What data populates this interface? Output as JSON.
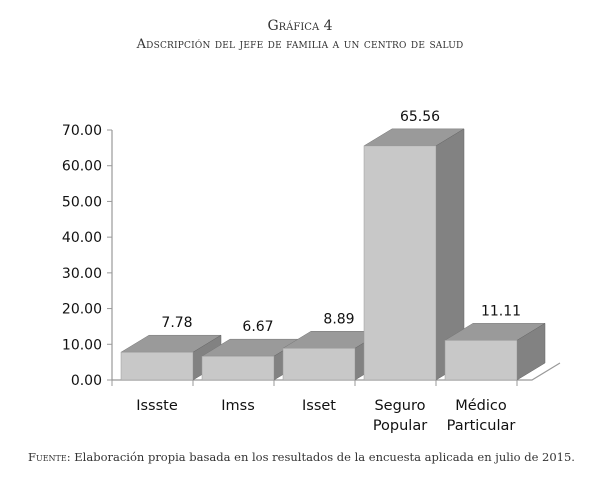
{
  "title": "Gráfica 4",
  "subtitle": "Adscripción del jefe de familia a un centro de salud",
  "source_label": "Fuente:",
  "source_text": " Elaboración propia basada en los resultados de la encuesta aplicada en julio de 2015.",
  "chart_data": {
    "type": "bar",
    "title": "Gráfica 4",
    "subtitle": "Adscripción del jefe de familia a un centro de salud",
    "categories": [
      [
        "Issste"
      ],
      [
        "Imss"
      ],
      [
        "Isset"
      ],
      [
        "Seguro",
        "Popular"
      ],
      [
        "Médico",
        "Particular"
      ]
    ],
    "values": [
      7.78,
      6.67,
      8.89,
      65.56,
      11.11
    ],
    "data_labels": [
      "7.78",
      "6.67",
      "8.89",
      "65.56",
      "11.11"
    ],
    "yticks": [
      "0.00",
      "10.00",
      "20.00",
      "30.00",
      "40.00",
      "50.00",
      "60.00",
      "70.00"
    ],
    "ylim": [
      0,
      70
    ],
    "xlabel": "",
    "ylabel": "",
    "grid": false,
    "colors": {
      "front": "#c8c8c8",
      "top": "#9a9a9a",
      "side": "#828282",
      "axis": "#999999"
    }
  }
}
